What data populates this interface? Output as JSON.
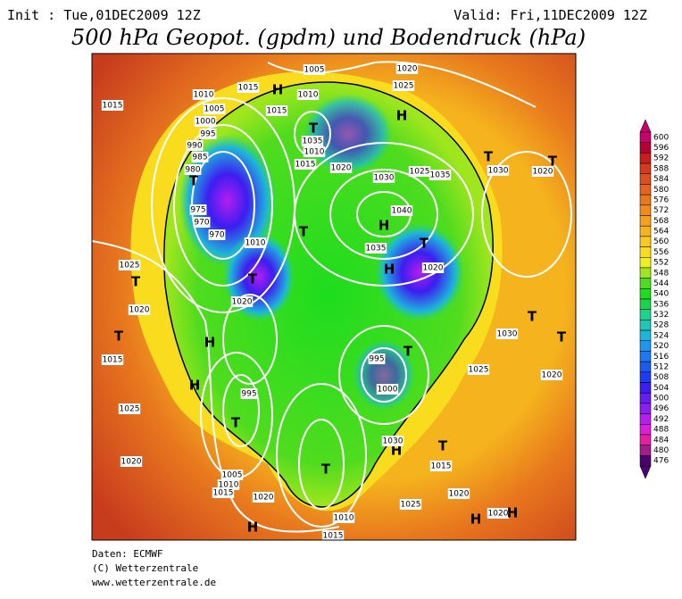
{
  "header": {
    "init": "Init : Tue,01DEC2009 12Z",
    "valid": "Valid: Fri,11DEC2009 12Z",
    "title": "500 hPa Geopot. (gpdm) und Bodendruck (hPa)"
  },
  "colorbar": {
    "ticks": [
      600,
      596,
      592,
      588,
      584,
      580,
      576,
      572,
      568,
      564,
      560,
      556,
      552,
      548,
      544,
      540,
      536,
      532,
      528,
      524,
      520,
      516,
      512,
      508,
      504,
      500,
      496,
      492,
      488,
      484,
      480,
      476
    ],
    "colors": [
      "#c8006e",
      "#b40032",
      "#c81e1e",
      "#d23c1e",
      "#dc501e",
      "#e6641e",
      "#e8781e",
      "#f08c1e",
      "#f5a01e",
      "#f5b41e",
      "#fac81e",
      "#fadc1e",
      "#f0f01e",
      "#a0e61e",
      "#50dc1e",
      "#1edc1e",
      "#1ed250",
      "#1ed28c",
      "#1ec8b4",
      "#1eb4dc",
      "#1e96f0",
      "#1e78f0",
      "#1e5af0",
      "#1e3cf0",
      "#3c1ef0",
      "#641ef0",
      "#8c1ef0",
      "#b41ef0",
      "#dc1edc",
      "#e61ea0",
      "#a01e8c",
      "#50006e"
    ]
  },
  "map_labels": [
    "1005",
    "1020",
    "H",
    "1010",
    "1015",
    "1025",
    "1010",
    "1005",
    "1015",
    "1000",
    "995",
    "990",
    "985",
    "980",
    "T",
    "975",
    "970",
    "970",
    "1010",
    "1015",
    "H",
    "1035",
    "T",
    "1010",
    "1015",
    "1020",
    "1030",
    "1025",
    "1035",
    "T",
    "1030",
    "1020",
    "T",
    "1040",
    "H",
    "1035",
    "T",
    "T",
    "1020",
    "H",
    "1020",
    "T",
    "T",
    "1025",
    "1020",
    "T",
    "1015",
    "H",
    "H",
    "1025",
    "1020",
    "995",
    "T",
    "1005",
    "1010",
    "1015",
    "1020",
    "H",
    "1025",
    "1020",
    "H",
    "1020",
    "H",
    "1015",
    "1010",
    "T",
    "H",
    "1030",
    "1015",
    "T",
    "995",
    "T",
    "1000",
    "1030",
    "T",
    "1025",
    "1020",
    "T"
  ],
  "footer": [
    "Daten: ECMWF",
    "(C) Wetterzentrale",
    "www.wetterzentrale.de"
  ]
}
